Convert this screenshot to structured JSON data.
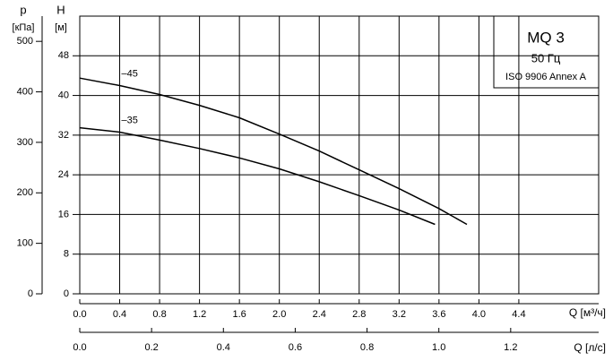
{
  "chart_data": {
    "type": "line",
    "title": "MQ 3",
    "subtitle": "50 Гц",
    "note": "ISO 9906 Annex A",
    "y_axis_label": "H",
    "y_axis_unit": "[м]",
    "y2_axis_label": "p",
    "y2_axis_unit": "[кПа]",
    "x_axis_label": "Q [м³/ч]",
    "x2_axis_label": "Q [л/с]",
    "xlim": [
      0,
      5.2
    ],
    "xticks": [
      {
        "value": 0,
        "label": "0.0"
      },
      0.4,
      0.8,
      1.2,
      1.6,
      {
        "value": 2,
        "label": "2.0"
      },
      2.4,
      2.8,
      3.2,
      3.6,
      {
        "value": 4,
        "label": "4.0"
      },
      4.4
    ],
    "x2lim": [
      0,
      1.445
    ],
    "x2ticks": [
      {
        "value": 0,
        "label": "0.0"
      },
      0.2,
      0.4,
      0.6,
      0.8,
      {
        "value": 1,
        "label": "1.0"
      },
      1.2
    ],
    "ylim": [
      0,
      56
    ],
    "yticks": [
      0,
      8,
      16,
      24,
      32,
      40,
      48
    ],
    "y2lim": [
      0,
      550
    ],
    "y2ticks": [
      0,
      100,
      200,
      300,
      400,
      500
    ],
    "grid": true,
    "series": [
      {
        "name": "–45",
        "color": "#000000",
        "x": [
          0,
          0.4,
          0.8,
          1.2,
          1.6,
          2.0,
          2.4,
          2.8,
          3.2,
          3.6,
          3.88
        ],
        "values": [
          43.5,
          42,
          40.2,
          38,
          35.5,
          32.2,
          28.8,
          25,
          21.2,
          17.2,
          14
        ]
      },
      {
        "name": "–35",
        "color": "#000000",
        "x": [
          0,
          0.4,
          0.8,
          1.2,
          1.6,
          2.0,
          2.4,
          2.8,
          3.2,
          3.56
        ],
        "values": [
          33.5,
          32.6,
          31,
          29.3,
          27.4,
          25.2,
          22.6,
          19.8,
          16.9,
          14
        ]
      }
    ]
  }
}
